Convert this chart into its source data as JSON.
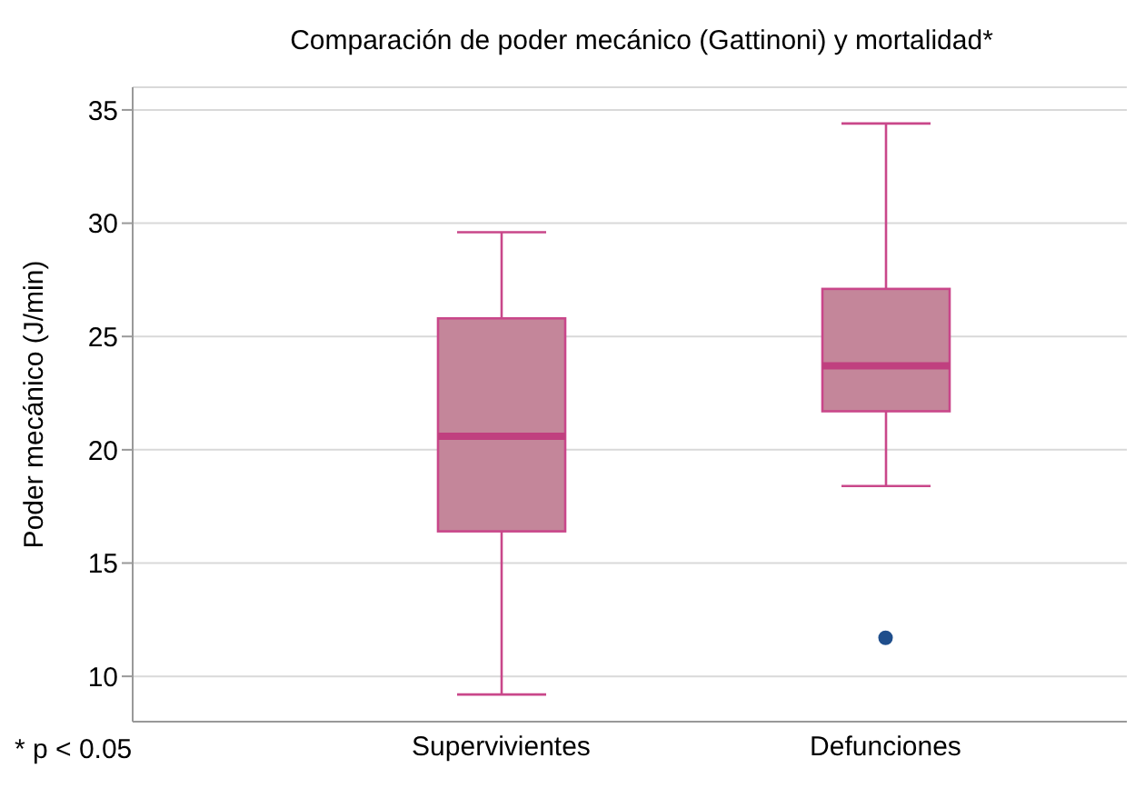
{
  "chart_data": {
    "type": "box",
    "title": "Comparación de poder mecánico (Gattinoni) y mortalidad*",
    "ylabel": "Poder mecánico (J/min)",
    "categories": [
      "Supervivientes",
      "Defunciones"
    ],
    "series": [
      {
        "color": "#c4869a",
        "boxes": [
          {
            "low": 9.2,
            "q1": 16.4,
            "median": 20.6,
            "q3": 25.8,
            "high": 29.6
          },
          {
            "low": 18.4,
            "q1": 21.7,
            "median": 23.7,
            "q3": 27.1,
            "high": 34.4,
            "outliers": [
              11.7
            ]
          }
        ]
      }
    ],
    "ylim": [
      8,
      36
    ],
    "yticks": [
      10,
      15,
      20,
      25,
      30,
      35
    ],
    "grid": "y",
    "annotations": [
      "* p < 0.05"
    ]
  }
}
